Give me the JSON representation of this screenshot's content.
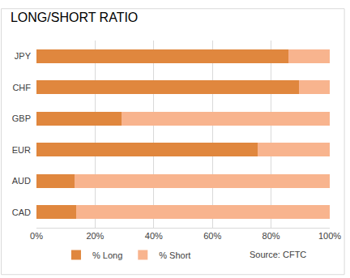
{
  "chart_data": {
    "type": "bar",
    "title": "LONG/SHORT RATIO",
    "orientation": "horizontal",
    "stacked": true,
    "categories": [
      "JPY",
      "CHF",
      "GBP",
      "EUR",
      "AUD",
      "CAD"
    ],
    "series": [
      {
        "name": "% Long",
        "color": "#e0873e",
        "values": [
          86,
          89.5,
          29,
          75.5,
          13,
          13.5
        ]
      },
      {
        "name": "% Short",
        "color": "#f8b48e",
        "values": [
          14,
          10.5,
          71,
          24.5,
          87,
          86.5
        ]
      }
    ],
    "xlim": [
      0,
      100
    ],
    "xticks": [
      {
        "value": 0,
        "label": "0%"
      },
      {
        "value": 20,
        "label": "20%"
      },
      {
        "value": 40,
        "label": "40%"
      },
      {
        "value": 60,
        "label": "60%"
      },
      {
        "value": 80,
        "label": "80%"
      },
      {
        "value": 100,
        "label": "100%"
      }
    ],
    "grid": true,
    "legend": "bottom",
    "annotations": [
      "Source: CFTC"
    ]
  }
}
